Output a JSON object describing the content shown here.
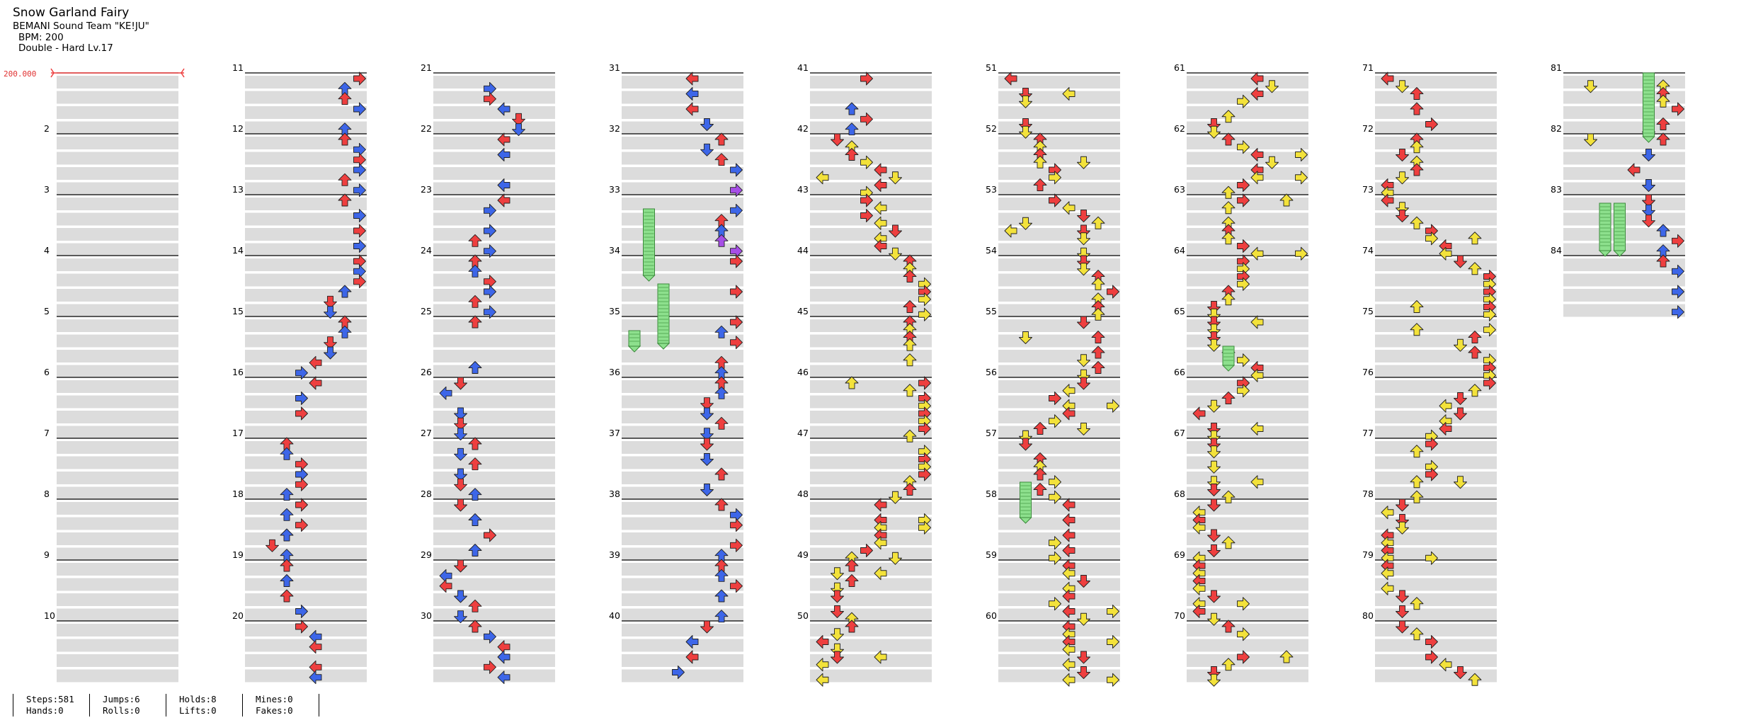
{
  "header": {
    "title": "Snow Garland Fairy",
    "artist": "BEMANI Sound Team \"KE!JU\"",
    "bpm_text": "BPM: 200",
    "difficulty_text": "Double - Hard  Lv.17"
  },
  "bpm_marker": {
    "label": "200.000",
    "color": "#e03030"
  },
  "measure_numbers": [
    "2",
    "3",
    "4",
    "5",
    "6",
    "7",
    "8",
    "9",
    "10",
    "11",
    "12",
    "13",
    "14",
    "15",
    "16",
    "17",
    "18",
    "19",
    "20",
    "21",
    "22",
    "23",
    "24",
    "25",
    "26",
    "27",
    "28",
    "29",
    "30",
    "31",
    "32",
    "33",
    "34",
    "35",
    "36",
    "37",
    "38",
    "39",
    "40",
    "41",
    "42",
    "43",
    "44",
    "45",
    "46",
    "47",
    "48",
    "49",
    "50",
    "51",
    "52",
    "53",
    "54",
    "55",
    "56",
    "57",
    "58",
    "59",
    "60",
    "61",
    "62",
    "63",
    "64",
    "65",
    "66",
    "67",
    "68",
    "69",
    "70",
    "71",
    "72",
    "73",
    "74",
    "75",
    "76",
    "77",
    "78",
    "79",
    "80",
    "81",
    "82",
    "83",
    "84"
  ],
  "colors": {
    "red": "#ee3f3f",
    "blue": "#3d66e8",
    "yellow": "#f3e23b",
    "purple": "#a64ee6",
    "hold": "#8de08d",
    "band": "#dcdcdc"
  },
  "icons": [
    "arrow-left-icon",
    "arrow-down-icon",
    "arrow-up-icon",
    "arrow-right-icon",
    "hold-note-icon"
  ],
  "stats": {
    "steps": "Steps:581",
    "hands": "Hands:0",
    "jumps": "Jumps:6",
    "rolls": "Rolls:0",
    "holds": "Holds:8",
    "lifts": "Lifts:0",
    "mines": "Mines:0",
    "fakes": "Fakes:0"
  }
}
